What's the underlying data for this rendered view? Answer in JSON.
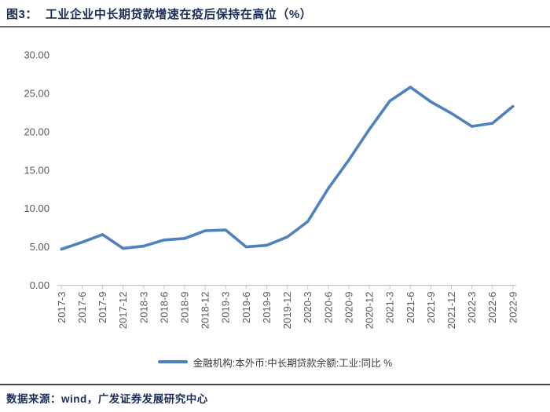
{
  "header": {
    "figure_label": "图3：",
    "title": "工业企业中长期贷款增速在疫后保持在高位（%）"
  },
  "footer": {
    "source_text": "数据来源：wind，广发证券发展研究中心"
  },
  "chart_data": {
    "type": "line",
    "title": "",
    "legend": "金融机构:本外币:中长期贷款余额:工业:同比 %",
    "legend_position": "bottom",
    "grid": false,
    "categories": [
      "2017-3",
      "2017-6",
      "2017-9",
      "2017-12",
      "2018-3",
      "2018-6",
      "2018-9",
      "2018-12",
      "2019-3",
      "2019-6",
      "2019-9",
      "2019-12",
      "2020-3",
      "2020-6",
      "2020-9",
      "2020-12",
      "2021-3",
      "2021-6",
      "2021-9",
      "2021-12",
      "2022-3",
      "2022-6",
      "2022-9"
    ],
    "values": [
      4.7,
      5.6,
      6.6,
      4.8,
      5.1,
      5.9,
      6.1,
      7.1,
      7.2,
      5.0,
      5.2,
      6.3,
      8.3,
      12.6,
      16.3,
      20.3,
      24.0,
      25.8,
      23.9,
      22.4,
      20.7,
      21.1,
      23.3
    ],
    "xlabel": "",
    "ylabel": "",
    "ylim": [
      0,
      30
    ],
    "ytick_step": 5,
    "ytick_labels": [
      "0.00",
      "5.00",
      "10.00",
      "15.00",
      "20.00",
      "25.00",
      "30.00"
    ],
    "line_color": "#4F81BD",
    "axis_text_color": "#595959",
    "axis_line_color": "#C6C6C6"
  }
}
